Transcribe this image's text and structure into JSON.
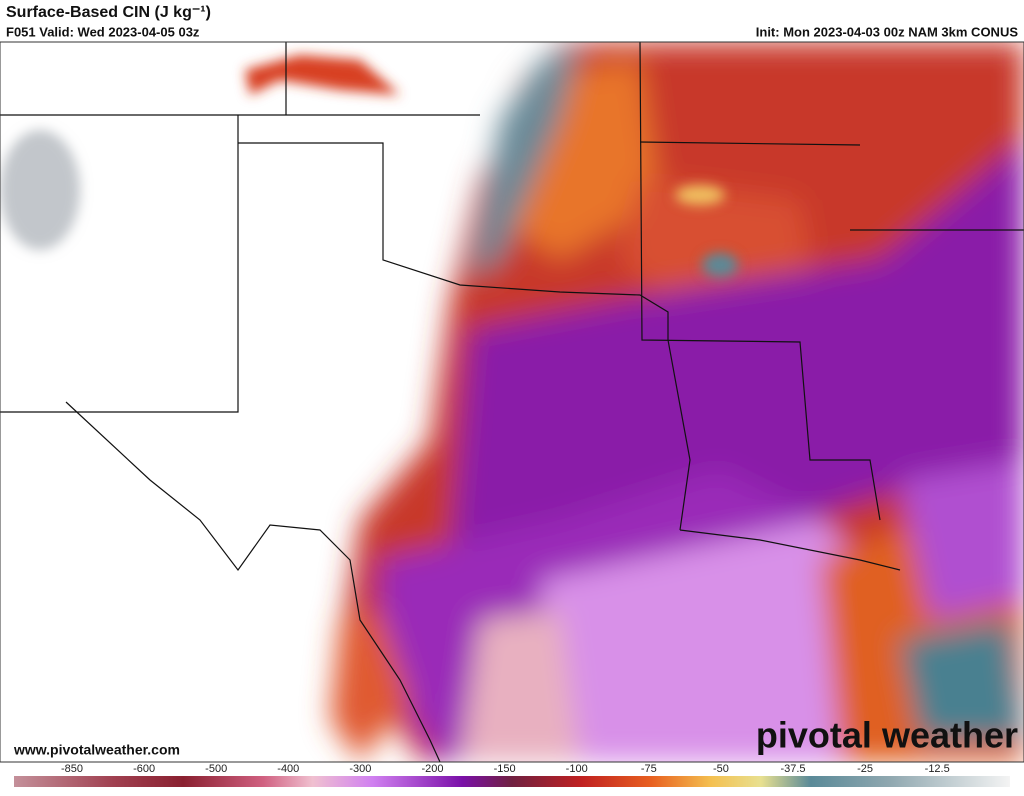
{
  "header": {
    "title": "Surface-Based CIN (J kg⁻¹)",
    "valid": "F051 Valid: Wed 2023-04-05 03z",
    "init": "Init: Mon 2023-04-03 00z NAM 3km CONUS"
  },
  "watermark": {
    "brand": "pivotal weather",
    "url": "www.pivotalweather.com"
  },
  "colorbar": {
    "ticks": [
      -850,
      -600,
      -500,
      -400,
      -300,
      -200,
      -150,
      -100,
      -75,
      -50,
      -37.5,
      -25,
      -12.5
    ]
  }
}
